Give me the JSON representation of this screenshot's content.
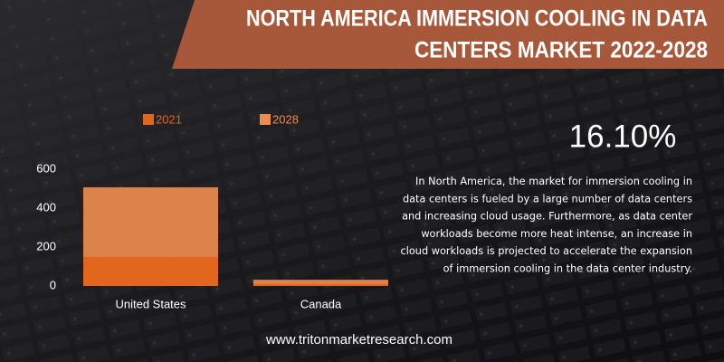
{
  "chart_data": {
    "type": "bar",
    "title": [
      "NORTH AMERICA IMMERSION COOLING IN DATA",
      "CENTERS MARKET 2022-2028"
    ],
    "categories": [
      "United States",
      "Canada"
    ],
    "series": [
      {
        "name": "2021",
        "color": "#e2661d",
        "values": [
          149,
          10
        ]
      },
      {
        "name": "2028",
        "color": "#ec8c4e",
        "values": [
          507,
          32
        ]
      }
    ],
    "ylim": [
      0,
      600
    ],
    "yticks": [
      0,
      200,
      400,
      600
    ],
    "annotation": "16.10%"
  },
  "description": [
    "In North America, the market for immersion cooling in",
    "data centers is fueled by a large number of data centers",
    "and increasing cloud usage. Furthermore, as data center",
    "workloads become more heat intense, an increase in",
    "cloud workloads is projected to accelerate the expansion",
    "of immersion cooling in the data center industry."
  ],
  "footer": "www.tritonmarketresearch.com"
}
